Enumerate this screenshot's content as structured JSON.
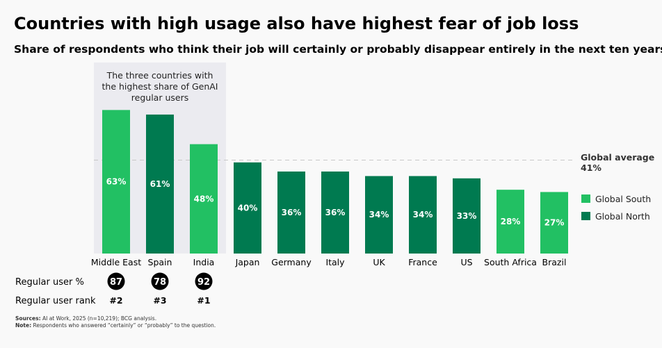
{
  "chart_data": {
    "type": "bar",
    "title": "Countries with high usage also have highest fear of job loss",
    "subtitle": "Share of respondents who think their job will certainly or probably disappear entirely in the next ten years",
    "categories": [
      "Middle East",
      "Spain",
      "India",
      "Japan",
      "Germany",
      "Italy",
      "UK",
      "France",
      "US",
      "South Africa",
      "Brazil"
    ],
    "values": [
      63,
      61,
      48,
      40,
      36,
      36,
      34,
      34,
      33,
      28,
      27
    ],
    "value_labels": [
      "63%",
      "61%",
      "48%",
      "40%",
      "36%",
      "36%",
      "34%",
      "34%",
      "33%",
      "28%",
      "27%"
    ],
    "groups": [
      "Global South",
      "Global North",
      "Global South",
      "Global North",
      "Global North",
      "Global North",
      "Global North",
      "Global North",
      "Global North",
      "Global South",
      "Global South"
    ],
    "ylim": [
      0,
      70
    ],
    "grid": false,
    "reference_line": {
      "label": "Global average",
      "value": 41,
      "value_label": "41%"
    },
    "highlight": {
      "text": [
        "The three countries with",
        "the highest share of GenAI",
        "regular users"
      ],
      "categories": [
        "Middle East",
        "Spain",
        "India"
      ]
    },
    "legend": {
      "placement": "right",
      "entries": [
        {
          "name": "Global South",
          "color": "#22c063"
        },
        {
          "name": "Global North",
          "color": "#007a50"
        }
      ]
    },
    "rows": {
      "user_pct_label": "Regular user %",
      "user_pct": [
        "87",
        "78",
        "92"
      ],
      "user_rank_label": "Regular user rank",
      "user_rank": [
        "#2",
        "#3",
        "#1"
      ]
    },
    "sources_label": "Sources:",
    "sources": "AI at Work, 2025 (n=10,219); BCG analysis.",
    "note_label": "Note:",
    "note": "Respondents who answered “certainly” or “probably” to the question."
  }
}
